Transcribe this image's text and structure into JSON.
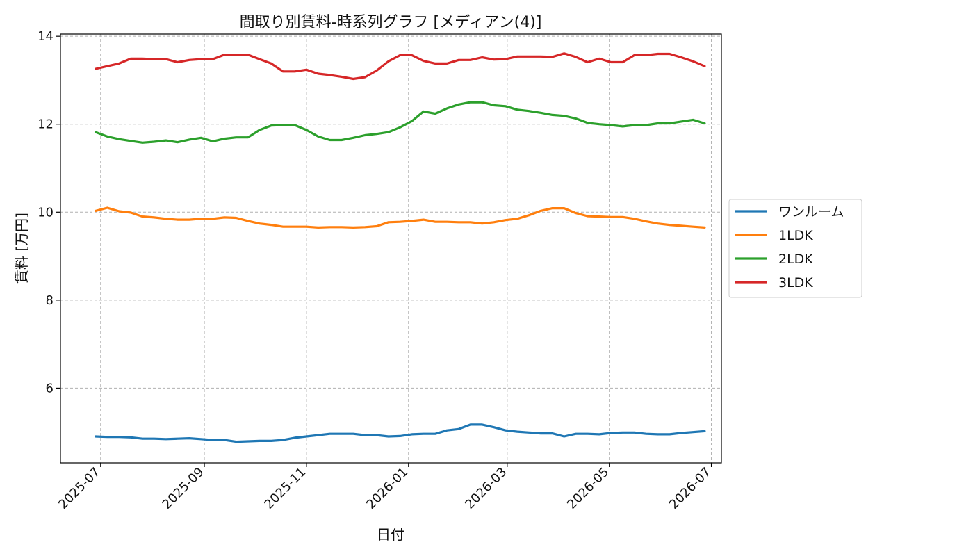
{
  "chart_data": {
    "type": "line",
    "title": "間取り別賃料-時系列グラフ [メディアン(4)]",
    "xlabel": "日付",
    "ylabel": "賃料 [万円]",
    "ylim": [
      4.3,
      14.05
    ],
    "yticks": [
      6,
      8,
      10,
      12,
      14
    ],
    "xlim": [
      "2025-06-07",
      "2026-07-07"
    ],
    "xticks": [
      "2025-07",
      "2025-09",
      "2025-11",
      "2026-01",
      "2026-03",
      "2026-05",
      "2026-07"
    ],
    "grid": true,
    "legend_position": "center-right-outside",
    "x": [
      "2025-06-28",
      "2025-07-05",
      "2025-07-12",
      "2025-07-19",
      "2025-07-26",
      "2025-08-02",
      "2025-08-09",
      "2025-08-16",
      "2025-08-23",
      "2025-08-30",
      "2025-09-06",
      "2025-09-13",
      "2025-09-20",
      "2025-09-27",
      "2025-10-04",
      "2025-10-11",
      "2025-10-18",
      "2025-10-25",
      "2025-11-01",
      "2025-11-08",
      "2025-11-15",
      "2025-11-22",
      "2025-11-29",
      "2025-12-06",
      "2025-12-13",
      "2025-12-20",
      "2025-12-27",
      "2026-01-03",
      "2026-01-10",
      "2026-01-17",
      "2026-01-24",
      "2026-01-31",
      "2026-02-07",
      "2026-02-14",
      "2026-02-21",
      "2026-02-28",
      "2026-03-07",
      "2026-03-14",
      "2026-03-21",
      "2026-03-28",
      "2026-04-04",
      "2026-04-11",
      "2026-04-18",
      "2026-04-25",
      "2026-05-02",
      "2026-05-09",
      "2026-05-16",
      "2026-05-23",
      "2026-05-30",
      "2026-06-06",
      "2026-06-13",
      "2026-06-20",
      "2026-06-27"
    ],
    "series": [
      {
        "name": "ワンルーム",
        "color": "#1f77b4",
        "values": [
          4.9,
          4.89,
          4.89,
          4.88,
          4.85,
          4.85,
          4.84,
          4.85,
          4.86,
          4.84,
          4.82,
          4.82,
          4.78,
          4.79,
          4.8,
          4.8,
          4.82,
          4.87,
          4.9,
          4.93,
          4.96,
          4.96,
          4.96,
          4.93,
          4.93,
          4.9,
          4.91,
          4.95,
          4.96,
          4.96,
          5.04,
          5.07,
          5.17,
          5.17,
          5.11,
          5.04,
          5.01,
          4.99,
          4.97,
          4.97,
          4.9,
          4.96,
          4.96,
          4.95,
          4.98,
          4.99,
          4.99,
          4.96,
          4.95,
          4.95,
          4.98,
          5.0,
          5.02
        ]
      },
      {
        "name": "1LDK",
        "color": "#ff7f0e",
        "values": [
          10.03,
          10.1,
          10.02,
          9.99,
          9.9,
          9.88,
          9.85,
          9.83,
          9.83,
          9.85,
          9.85,
          9.88,
          9.87,
          9.8,
          9.74,
          9.71,
          9.67,
          9.67,
          9.67,
          9.65,
          9.66,
          9.66,
          9.65,
          9.66,
          9.68,
          9.77,
          9.78,
          9.8,
          9.83,
          9.78,
          9.78,
          9.77,
          9.77,
          9.74,
          9.77,
          9.82,
          9.85,
          9.93,
          10.03,
          10.09,
          10.09,
          9.98,
          9.91,
          9.9,
          9.89,
          9.89,
          9.85,
          9.79,
          9.74,
          9.71,
          9.69,
          9.67,
          9.65
        ]
      },
      {
        "name": "2LDK",
        "color": "#2ca02c",
        "values": [
          11.82,
          11.72,
          11.66,
          11.62,
          11.58,
          11.6,
          11.63,
          11.59,
          11.65,
          11.69,
          11.61,
          11.67,
          11.7,
          11.7,
          11.87,
          11.97,
          11.98,
          11.98,
          11.87,
          11.72,
          11.64,
          11.64,
          11.69,
          11.75,
          11.78,
          11.82,
          11.93,
          12.07,
          12.29,
          12.24,
          12.36,
          12.45,
          12.5,
          12.5,
          12.43,
          12.41,
          12.33,
          12.3,
          12.26,
          12.21,
          12.19,
          12.13,
          12.03,
          12.0,
          11.98,
          11.95,
          11.98,
          11.98,
          12.02,
          12.02,
          12.06,
          12.1,
          12.02
        ]
      },
      {
        "name": "3LDK",
        "color": "#d62728",
        "values": [
          13.26,
          13.32,
          13.38,
          13.49,
          13.49,
          13.48,
          13.48,
          13.41,
          13.46,
          13.48,
          13.48,
          13.58,
          13.58,
          13.58,
          13.48,
          13.38,
          13.2,
          13.2,
          13.24,
          13.15,
          13.12,
          13.08,
          13.03,
          13.07,
          13.22,
          13.43,
          13.57,
          13.57,
          13.44,
          13.38,
          13.38,
          13.46,
          13.46,
          13.52,
          13.47,
          13.48,
          13.54,
          13.54,
          13.54,
          13.53,
          13.61,
          13.53,
          13.41,
          13.49,
          13.41,
          13.41,
          13.57,
          13.57,
          13.6,
          13.6,
          13.52,
          13.43,
          13.32
        ]
      }
    ]
  }
}
